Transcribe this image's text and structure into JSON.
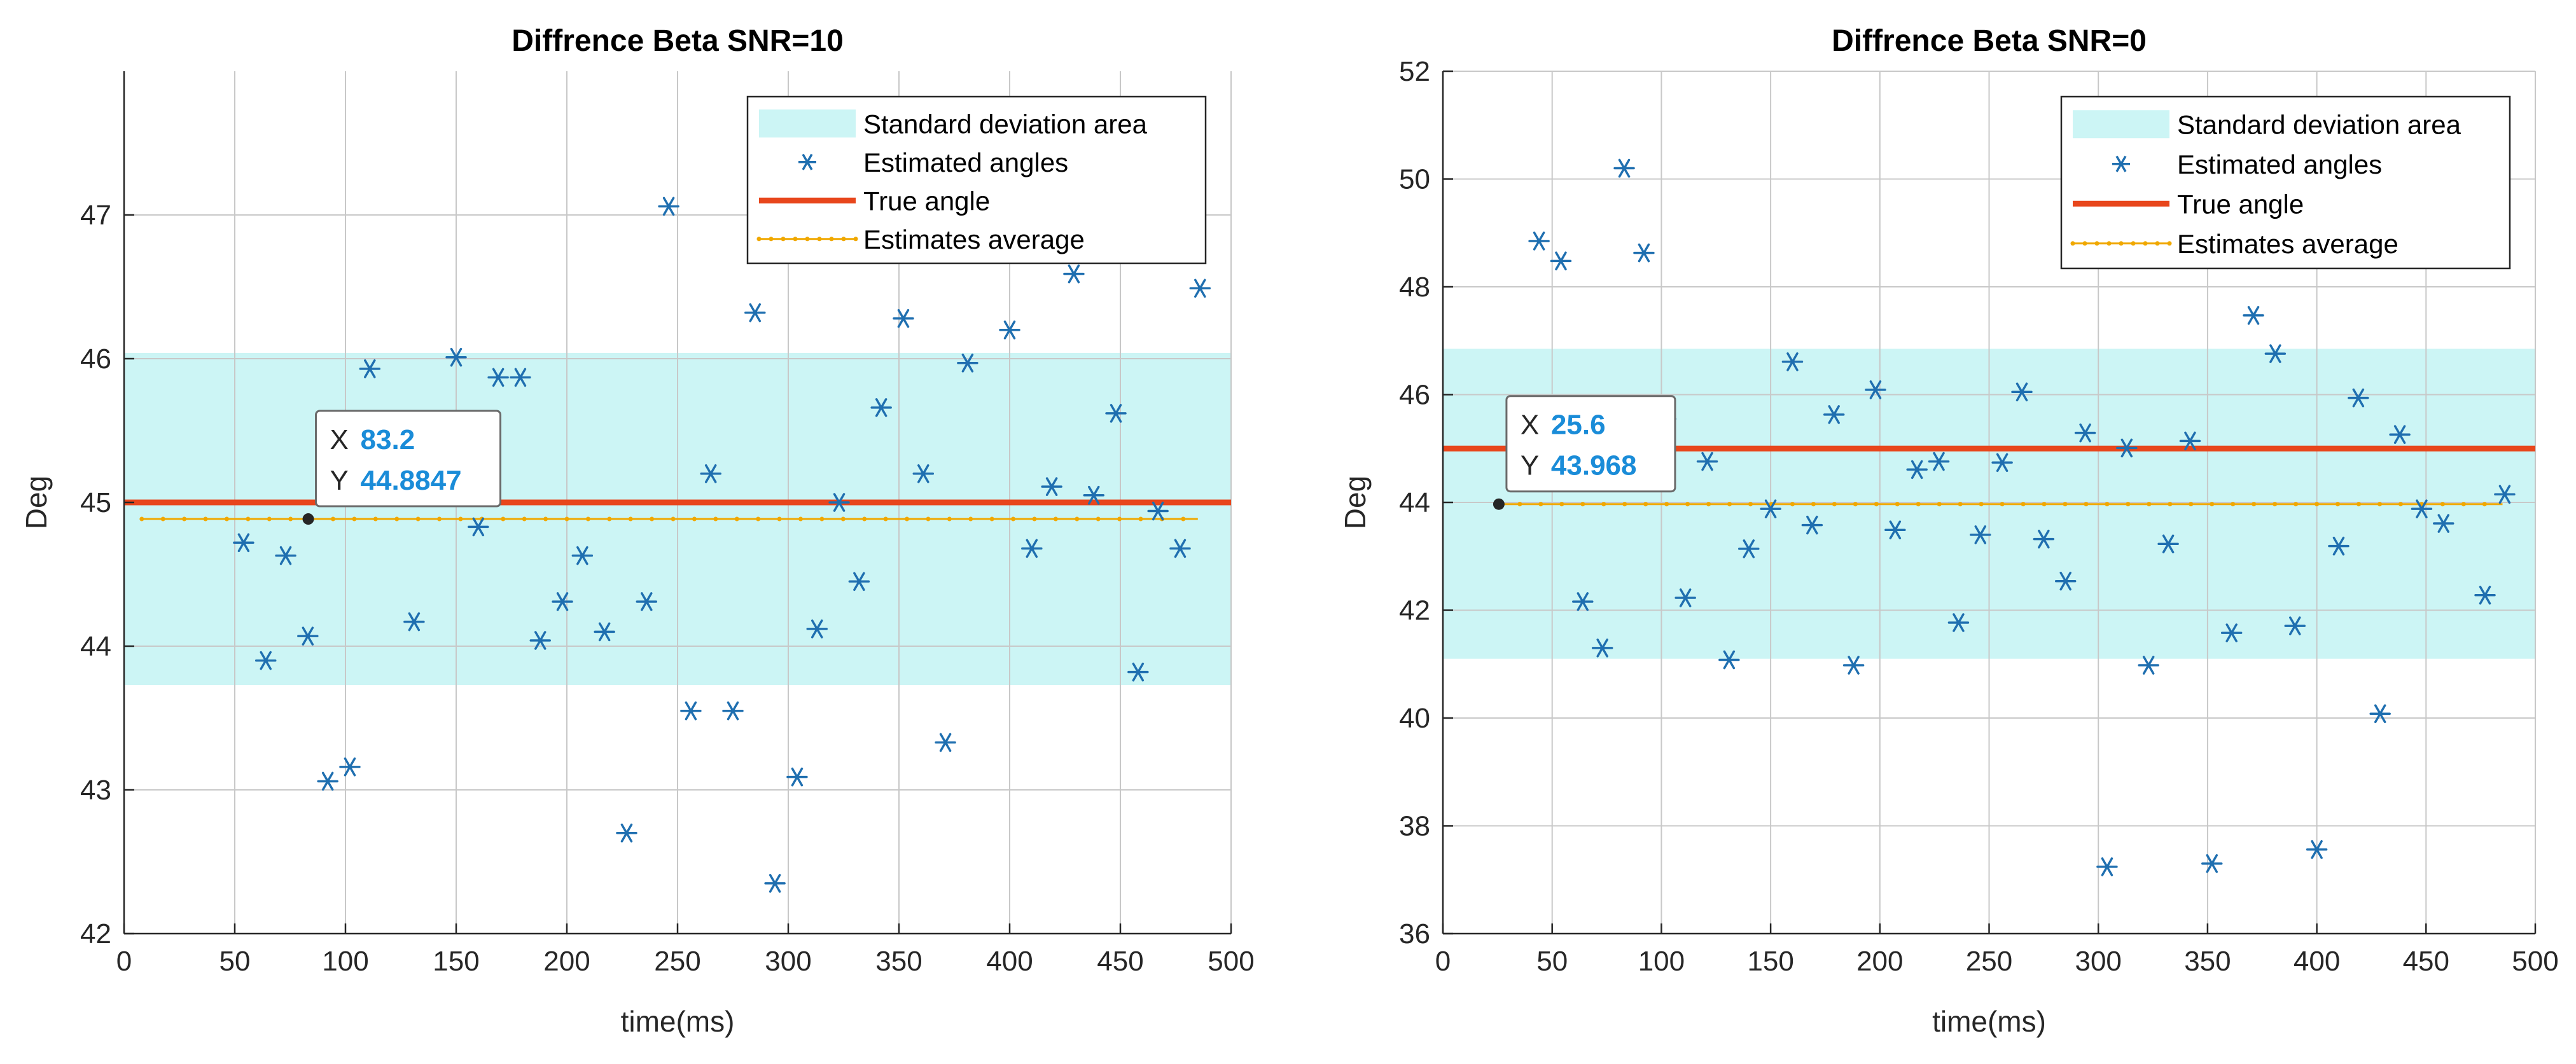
{
  "chart_data": [
    {
      "type": "scatter",
      "title": "Diffrence Beta SNR=10",
      "xlabel": "time(ms)",
      "ylabel": "Deg",
      "xlim": [
        0,
        500
      ],
      "ylim": [
        42,
        48
      ],
      "xticks": [
        "0",
        "50",
        "100",
        "150",
        "200",
        "250",
        "300",
        "350",
        "400",
        "450",
        "500"
      ],
      "yticks": [
        "42",
        "43",
        "44",
        "45",
        "46",
        "47"
      ],
      "grid": true,
      "legend_position": "top-right",
      "std_band": [
        43.73,
        46.04
      ],
      "true_angle": 45,
      "average": 44.885,
      "average_x_range": [
        8,
        485
      ],
      "series": [
        {
          "name": "Standard deviation area",
          "kind": "band",
          "color": "#ccf5f5"
        },
        {
          "name": "Estimated angles",
          "kind": "points",
          "color": "#1f6fb0",
          "x": [
            54,
            64,
            73,
            83,
            92,
            102,
            111,
            131,
            150,
            160,
            169,
            179,
            188,
            198,
            207,
            217,
            227,
            236,
            246,
            256,
            265,
            275,
            285,
            294,
            304,
            313,
            323,
            332,
            342,
            352,
            361,
            371,
            381,
            400,
            410,
            419,
            429,
            438,
            448,
            458,
            467,
            477,
            486
          ],
          "y": [
            44.72,
            43.9,
            44.63,
            44.07,
            43.06,
            43.16,
            45.93,
            44.17,
            46.01,
            44.83,
            45.87,
            45.87,
            44.04,
            44.31,
            44.63,
            44.1,
            42.7,
            44.31,
            47.06,
            43.55,
            45.2,
            43.55,
            46.32,
            42.35,
            43.09,
            44.12,
            45.0,
            44.45,
            45.66,
            46.28,
            45.2,
            43.33,
            45.97,
            46.2,
            44.68,
            45.11,
            46.59,
            45.05,
            45.62,
            43.82,
            44.94,
            44.68,
            46.49
          ]
        },
        {
          "name": "True angle",
          "kind": "line",
          "color": "#e8461c"
        },
        {
          "name": "Estimates average",
          "kind": "line",
          "color": "#f0a800"
        }
      ],
      "datatip": {
        "x_label": "X",
        "x_value": "83.2",
        "y_label": "Y",
        "y_value": "44.8847",
        "x": 83.2,
        "y": 44.8847
      }
    },
    {
      "type": "scatter",
      "title": "Diffrence Beta SNR=0",
      "xlabel": "time(ms)",
      "ylabel": "Deg",
      "xlim": [
        0,
        500
      ],
      "ylim": [
        36,
        52
      ],
      "xticks": [
        "0",
        "50",
        "100",
        "150",
        "200",
        "250",
        "300",
        "350",
        "400",
        "450",
        "500"
      ],
      "yticks": [
        "36",
        "38",
        "40",
        "42",
        "44",
        "46",
        "48",
        "50",
        "52"
      ],
      "grid": true,
      "legend_position": "top-right",
      "std_band": [
        41.1,
        46.85
      ],
      "true_angle": 45,
      "average": 43.968,
      "average_x_range": [
        25.6,
        485
      ],
      "series": [
        {
          "name": "Standard deviation area",
          "kind": "band",
          "color": "#ccf5f5"
        },
        {
          "name": "Estimated angles",
          "kind": "points",
          "color": "#1f6fb0",
          "x": [
            44,
            54,
            64,
            73,
            83,
            92,
            102,
            111,
            121,
            131,
            140,
            150,
            160,
            169,
            179,
            188,
            198,
            207,
            217,
            227,
            236,
            246,
            256,
            265,
            275,
            285,
            294,
            304,
            313,
            323,
            332,
            342,
            352,
            361,
            371,
            381,
            390,
            400,
            410,
            419,
            429,
            438,
            448,
            458,
            477,
            486
          ],
          "y": [
            48.85,
            48.48,
            42.16,
            41.3,
            50.2,
            48.63,
            45.55,
            42.23,
            44.76,
            41.08,
            43.14,
            43.88,
            46.61,
            43.58,
            45.63,
            40.98,
            46.09,
            43.49,
            44.61,
            44.76,
            41.77,
            43.4,
            44.74,
            46.05,
            43.32,
            42.54,
            45.29,
            37.24,
            45.01,
            40.98,
            43.23,
            45.14,
            37.3,
            41.58,
            47.47,
            46.76,
            41.71,
            37.56,
            43.19,
            45.94,
            40.08,
            45.26,
            43.88,
            43.61,
            42.28,
            44.15
          ]
        },
        {
          "name": "True angle",
          "kind": "line",
          "color": "#e8461c"
        },
        {
          "name": "Estimates average",
          "kind": "line",
          "color": "#f0a800"
        }
      ],
      "datatip": {
        "x_label": "X",
        "x_value": "25.6",
        "y_label": "Y",
        "y_value": "43.968",
        "x": 25.6,
        "y": 43.968
      }
    }
  ]
}
